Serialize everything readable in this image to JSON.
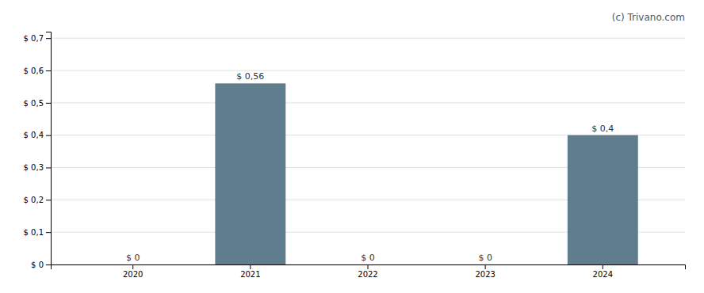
{
  "chart_data": {
    "type": "bar",
    "annotation": "(c) Trivano.com",
    "categories": [
      "2020",
      "2021",
      "2022",
      "2023",
      "2024"
    ],
    "values": [
      0,
      0.56,
      0,
      0,
      0.4
    ],
    "value_labels": [
      "$ 0",
      "$ 0,56",
      "$ 0",
      "$ 0",
      "$ 0,4"
    ],
    "data_labels": true,
    "color": "#5f7d8c",
    "ylim": [
      0,
      0.72
    ],
    "yticks": [
      {
        "value": 0,
        "label": "$ 0"
      },
      {
        "value": 0.1,
        "label": "$ 0,1"
      },
      {
        "value": 0.2,
        "label": "$ 0,2"
      },
      {
        "value": 0.3,
        "label": "$ 0,3"
      },
      {
        "value": 0.4,
        "label": "$ 0,4"
      },
      {
        "value": 0.5,
        "label": "$ 0,5"
      },
      {
        "value": 0.6,
        "label": "$ 0,6"
      },
      {
        "value": 0.7,
        "label": "$ 0,7"
      }
    ],
    "grid": true
  }
}
